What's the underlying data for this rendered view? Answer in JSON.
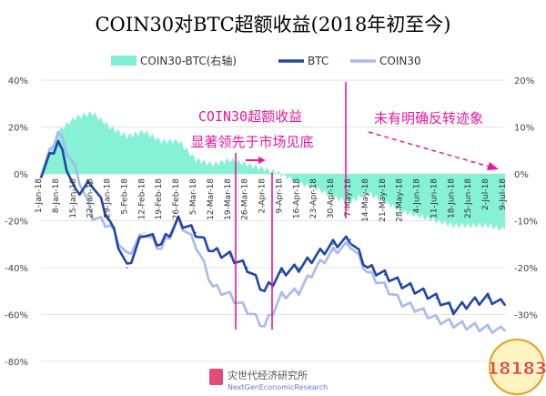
{
  "chart_data": {
    "type": "line",
    "title": "COIN30对BTC超额收益(2018年初至今)",
    "legend": [
      "COIN30-BTC(右轴)",
      "BTC",
      "COIN30"
    ],
    "legend_placement": "top",
    "colors": {
      "excess": "#7ff0d2",
      "btc": "#1f45a8",
      "coin30": "#a9b9ec",
      "annotation": "#e8199a",
      "grid": "#e3e3e3",
      "title": "#000000"
    },
    "y_left": {
      "ticks": [
        "40%",
        "20%",
        "0%",
        "-20%",
        "-40%",
        "-60%",
        "-80%"
      ],
      "range": [
        -80,
        40
      ]
    },
    "y_right": {
      "ticks": [
        "20%",
        "10%",
        "0%",
        "-10%",
        "-20%",
        "-30%"
      ],
      "range": [
        -40,
        20
      ]
    },
    "x_ticks": [
      "1-Jan-18",
      "8-Jan-18",
      "15-Jan-18",
      "22-Jan-18",
      "29-Jan-18",
      "5-Feb-18",
      "12-Feb-18",
      "19-Feb-18",
      "26-Feb-18",
      "5-Mar-18",
      "12-Mar-18",
      "19-Mar-18",
      "26-Mar-18",
      "2-Apr-18",
      "9-Apr-18",
      "16-Apr-18",
      "23-Apr-18",
      "30-Apr-18",
      "7-May-18",
      "14-May-18",
      "21-May-18",
      "28-May-18",
      "4-Jun-18",
      "11-Jun-18",
      "18-Jun-18",
      "25-Jun-18",
      "2-Jul-18",
      "9-Jul-18"
    ],
    "grid": true,
    "series": [
      {
        "name": "COIN30-BTC(右轴)",
        "axis": "right",
        "type": "area",
        "values": [
          0,
          9,
          12,
          13,
          10,
          8,
          9,
          7,
          7,
          3,
          2,
          3,
          2,
          1,
          0,
          -2,
          -3,
          -5,
          -6,
          -4,
          -6,
          -8,
          -9,
          -10,
          -11,
          -11,
          -11,
          -12
        ]
      },
      {
        "name": "BTC",
        "axis": "left",
        "values": [
          0,
          14,
          -8,
          -4,
          -20,
          -40,
          -25,
          -30,
          -20,
          -25,
          -33,
          -35,
          -40,
          -50,
          -42,
          -40,
          -35,
          -30,
          -28,
          -40,
          -43,
          -47,
          -50,
          -53,
          -58,
          -55,
          -53,
          -56
        ]
      },
      {
        "name": "COIN30",
        "axis": "left",
        "values": [
          0,
          18,
          2,
          -18,
          -22,
          -35,
          -25,
          -32,
          -20,
          -30,
          -48,
          -52,
          -58,
          -65,
          -52,
          -50,
          -40,
          -33,
          -30,
          -42,
          -48,
          -55,
          -58,
          -62,
          -64,
          -65,
          -66,
          -67
        ]
      }
    ],
    "annotations": [
      "COIN30超额收益",
      "显著领先于市场见底",
      "未有明确反转迹象"
    ],
    "watermark": {
      "cn": "灾世代经济研究所",
      "en": "NextGenEconomicResearch"
    },
    "badge": "18183"
  }
}
